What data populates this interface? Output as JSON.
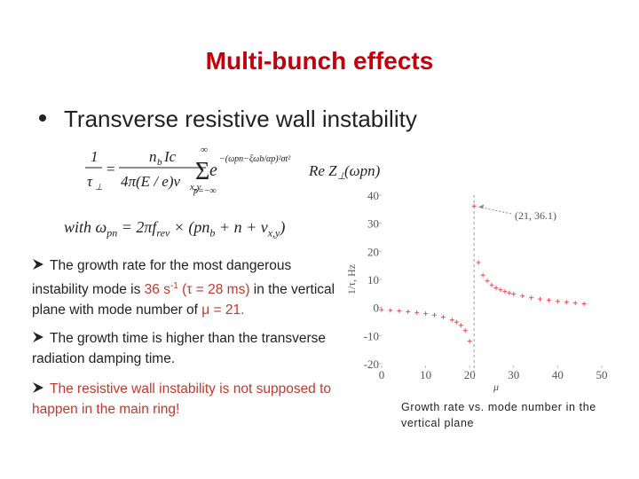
{
  "slide": {
    "title": "Multi-bunch effects",
    "bullet": "Transverse resistive wall instability",
    "formula": [
      "1",
      "τ",
      "⊥",
      "=",
      "n",
      "b",
      "Ic",
      "4π(E / e)ν",
      "x,y",
      "∞",
      "Σ",
      "p=−∞",
      "e",
      "−(ωpn−ξωb/αp)²σt²",
      "Re Z",
      "⊥",
      "(ωpn)"
    ],
    "with_line": [
      {
        "text": "with ω"
      },
      {
        "text": "pn",
        "style": "sub"
      },
      {
        "text": " = 2πf"
      },
      {
        "text": "rev",
        "style": "sub"
      },
      {
        "text": " × (pn"
      },
      {
        "text": "b",
        "style": "sub"
      },
      {
        "text": " + n + ν"
      },
      {
        "text": "x,y",
        "style": "sub"
      },
      {
        "text": ")"
      }
    ],
    "points": [
      [
        {
          "text": "The growth rate for the most dangerous instability mode is "
        },
        {
          "text": "36 s",
          "style": "em"
        },
        {
          "text": "-1",
          "style": "em-sup"
        },
        {
          "text": " (τ = 28 ms)",
          "style": "em"
        },
        {
          "text": " in the vertical plane with mode number of "
        },
        {
          "text": "μ = 21.",
          "style": "em"
        }
      ],
      [
        {
          "text": "The growth time is higher than the transverse radiation damping time."
        }
      ],
      [
        {
          "text": "The resistive wall instability is not supposed to happen  in the main ring!",
          "style": "em"
        }
      ]
    ],
    "caption": "Growth rate vs. mode number in the vertical plane"
  },
  "chart_data": {
    "type": "scatter",
    "x_label": "μ",
    "y_label": "1/τ, Hz",
    "annotation": "(21, 36.1)",
    "x": [
      0,
      2,
      4,
      6,
      8,
      10,
      12,
      14,
      16,
      17,
      18,
      19,
      20,
      21,
      22,
      23,
      24,
      25,
      26,
      27,
      28,
      29,
      30,
      32,
      34,
      36,
      38,
      40,
      42,
      44,
      46
    ],
    "values": [
      -0.8,
      -1,
      -1.2,
      -1.5,
      -1.8,
      -2.2,
      -2.7,
      -3.4,
      -4.4,
      -5.2,
      -6.3,
      -8.2,
      -12,
      36.1,
      16,
      11.5,
      9.5,
      8,
      7,
      6.3,
      5.7,
      5.2,
      4.8,
      4.1,
      3.5,
      3,
      2.6,
      2.2,
      1.9,
      1.6,
      1.3
    ],
    "color": "#e8505b",
    "xlim": [
      0,
      50
    ],
    "xticks": [
      0,
      10,
      20,
      30,
      40,
      50
    ],
    "ylim": [
      -20,
      40
    ],
    "yticks": [
      -20,
      -10,
      0,
      10,
      20,
      30,
      40
    ]
  }
}
